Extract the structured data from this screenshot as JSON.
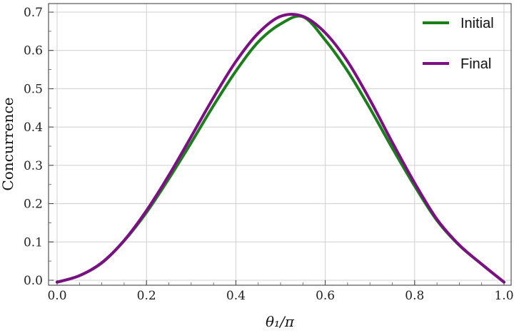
{
  "chart_data": {
    "type": "line",
    "xlabel": "θ₁/π",
    "ylabel": "Concurrence",
    "xlim": [
      0,
      1
    ],
    "ylim": [
      -0.01,
      0.72
    ],
    "x_ticks": [
      "0.0",
      "0.2",
      "0.4",
      "0.6",
      "0.8",
      "1.0"
    ],
    "y_ticks": [
      "0.0",
      "0.1",
      "0.2",
      "0.3",
      "0.4",
      "0.5",
      "0.6",
      "0.7"
    ],
    "grid": true,
    "legend_position": "top-right",
    "colors": {
      "initial": "#1a7f1a",
      "final": "#7d0f84"
    },
    "x": [
      0.0,
      0.05,
      0.1,
      0.15,
      0.2,
      0.25,
      0.3,
      0.35,
      0.4,
      0.45,
      0.5,
      0.55,
      0.6,
      0.65,
      0.7,
      0.75,
      0.8,
      0.85,
      0.9,
      0.95,
      1.0
    ],
    "series": [
      {
        "name": "Initial",
        "values": [
          -0.005,
          0.012,
          0.045,
          0.103,
          0.177,
          0.265,
          0.359,
          0.456,
          0.546,
          0.622,
          0.669,
          0.688,
          0.627,
          0.546,
          0.449,
          0.345,
          0.246,
          0.156,
          0.091,
          0.042,
          -0.005
        ]
      },
      {
        "name": "Final",
        "values": [
          -0.005,
          0.012,
          0.046,
          0.104,
          0.182,
          0.274,
          0.375,
          0.477,
          0.571,
          0.645,
          0.689,
          0.689,
          0.646,
          0.571,
          0.471,
          0.36,
          0.254,
          0.159,
          0.092,
          0.042,
          -0.005
        ]
      }
    ]
  }
}
